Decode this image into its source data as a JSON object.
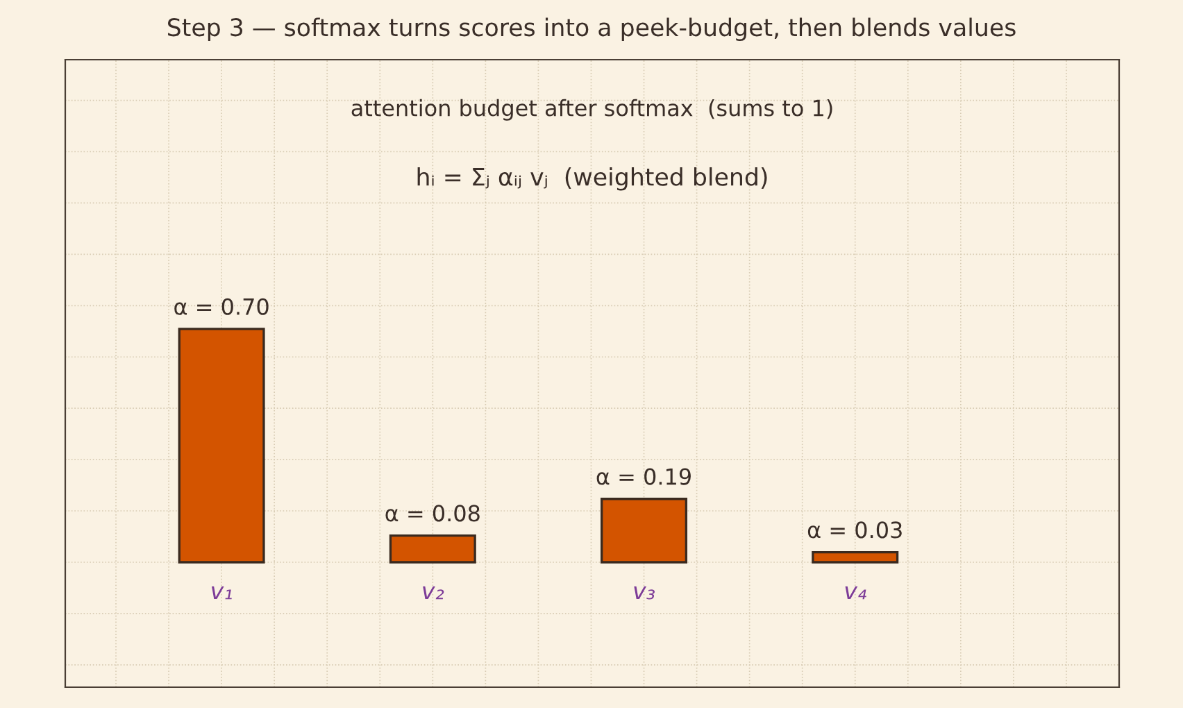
{
  "chart_data": {
    "type": "bar",
    "title": "Step 3 — softmax turns scores into a peek-budget, then blends values",
    "annotations": [
      "attention budget after softmax  (sums to 1)",
      "hᵢ = Σⱼ αᵢⱼ vⱼ  (weighted blend)"
    ],
    "categories": [
      "v₁",
      "v₂",
      "v₃",
      "v₄"
    ],
    "values": [
      0.7,
      0.08,
      0.19,
      0.03
    ],
    "value_labels": [
      "α = 0.70",
      "α = 0.08",
      "α = 0.19",
      "α = 0.03"
    ],
    "color": "#d35400",
    "grid": true,
    "tick_labels": false
  }
}
